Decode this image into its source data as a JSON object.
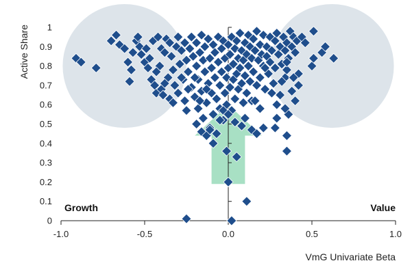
{
  "chart_data": {
    "type": "scatter",
    "title": "",
    "xlabel": "VmG Univariate Beta",
    "ylabel": "Active Share",
    "xlim": [
      -1.0,
      1.0
    ],
    "ylim": [
      0,
      1.0
    ],
    "x_ticks": [
      "-1.0",
      "-0.5",
      "0.0",
      "0.5",
      "1.0"
    ],
    "x_tick_values": [
      -1.0,
      -0.5,
      0.0,
      0.5,
      1.0
    ],
    "y_ticks": [
      "0",
      "0.1",
      "0.2",
      "0.3",
      "0.4",
      "0.5",
      "0.6",
      "0.7",
      "0.8",
      "0.9",
      "1"
    ],
    "y_tick_values": [
      0,
      0.1,
      0.2,
      0.3,
      0.4,
      0.5,
      0.6,
      0.7,
      0.8,
      0.9,
      1.0
    ],
    "grid": false,
    "annotations": {
      "left": "Growth",
      "right": "Value"
    },
    "colors": {
      "marker": "#1f4e8c",
      "marker_stroke": "#ffffff",
      "ellipse": "#dde4ea",
      "arrow": "#a8e0c4",
      "axis": "#222222"
    },
    "background_ellipses": [
      {
        "side": "growth",
        "cx": -0.62,
        "cy": 0.8,
        "rx": 0.37,
        "ry": 0.32
      },
      {
        "side": "value",
        "cx": 0.62,
        "cy": 0.8,
        "rx": 0.37,
        "ry": 0.32
      }
    ],
    "arrow": {
      "x_center": 0.0,
      "y_from": 0.19,
      "y_to": 0.6,
      "half_width": 0.1,
      "head_half_width": 0.2,
      "head_base": 0.44
    },
    "points": [
      [
        -0.91,
        0.84
      ],
      [
        -0.88,
        0.82
      ],
      [
        -0.79,
        0.79
      ],
      [
        -0.7,
        0.93
      ],
      [
        -0.67,
        0.96
      ],
      [
        -0.65,
        0.91
      ],
      [
        -0.62,
        0.89
      ],
      [
        -0.6,
        0.82
      ],
      [
        -0.59,
        0.72
      ],
      [
        -0.57,
        0.87
      ],
      [
        -0.55,
        0.93
      ],
      [
        -0.54,
        0.95
      ],
      [
        -0.53,
        0.9
      ],
      [
        -0.5,
        0.82
      ],
      [
        -0.49,
        0.89
      ],
      [
        -0.48,
        0.79
      ],
      [
        -0.47,
        0.84
      ],
      [
        -0.46,
        0.73
      ],
      [
        -0.45,
        0.93
      ],
      [
        -0.44,
        0.7
      ],
      [
        -0.43,
        0.66
      ],
      [
        -0.42,
        0.95
      ],
      [
        -0.41,
        0.8
      ],
      [
        -0.4,
        0.89
      ],
      [
        -0.4,
        0.68
      ],
      [
        -0.39,
        0.65
      ],
      [
        -0.38,
        0.87
      ],
      [
        -0.37,
        0.94
      ],
      [
        -0.36,
        0.74
      ],
      [
        -0.35,
        0.63
      ],
      [
        -0.35,
        0.92
      ],
      [
        -0.34,
        0.85
      ],
      [
        -0.33,
        0.78
      ],
      [
        -0.32,
        0.7
      ],
      [
        -0.31,
        0.9
      ],
      [
        -0.3,
        0.95
      ],
      [
        -0.3,
        0.66
      ],
      [
        -0.29,
        0.81
      ],
      [
        -0.28,
        0.88
      ],
      [
        -0.27,
        0.73
      ],
      [
        -0.26,
        0.62
      ],
      [
        -0.26,
        0.92
      ],
      [
        -0.25,
        0.57
      ],
      [
        -0.25,
        0.83
      ],
      [
        -0.24,
        0.77
      ],
      [
        -0.23,
        0.89
      ],
      [
        -0.22,
        0.69
      ],
      [
        -0.22,
        0.95
      ],
      [
        -0.21,
        0.85
      ],
      [
        -0.2,
        0.64
      ],
      [
        -0.19,
        0.8
      ],
      [
        -0.19,
        0.92
      ],
      [
        -0.18,
        0.58
      ],
      [
        -0.18,
        0.73
      ],
      [
        -0.17,
        0.87
      ],
      [
        -0.16,
        0.96
      ],
      [
        -0.16,
        0.67
      ],
      [
        -0.15,
        0.83
      ],
      [
        -0.15,
        0.53
      ],
      [
        -0.14,
        0.77
      ],
      [
        -0.14,
        0.9
      ],
      [
        -0.13,
        0.61
      ],
      [
        -0.12,
        0.94
      ],
      [
        -0.12,
        0.71
      ],
      [
        -0.11,
        0.84
      ],
      [
        -0.11,
        0.48
      ],
      [
        -0.1,
        0.66
      ],
      [
        -0.1,
        0.79
      ],
      [
        -0.09,
        0.91
      ],
      [
        -0.09,
        0.55
      ],
      [
        -0.08,
        0.74
      ],
      [
        -0.08,
        0.87
      ],
      [
        -0.07,
        0.45
      ],
      [
        -0.07,
        0.63
      ],
      [
        -0.06,
        0.82
      ],
      [
        -0.06,
        0.95
      ],
      [
        -0.05,
        0.7
      ],
      [
        -0.05,
        0.58
      ],
      [
        -0.04,
        0.89
      ],
      [
        -0.04,
        0.77
      ],
      [
        -0.03,
        0.52
      ],
      [
        -0.03,
        0.93
      ],
      [
        -0.02,
        0.66
      ],
      [
        -0.02,
        0.84
      ],
      [
        -0.01,
        0.74
      ],
      [
        -0.01,
        0.6
      ],
      [
        0.0,
        0.91
      ],
      [
        0.0,
        0.79
      ],
      [
        0.01,
        0.86
      ],
      [
        0.01,
        0.69
      ],
      [
        0.02,
        0.95
      ],
      [
        0.02,
        0.57
      ],
      [
        0.03,
        0.81
      ],
      [
        0.03,
        0.73
      ],
      [
        0.04,
        0.89
      ],
      [
        0.04,
        0.63
      ],
      [
        0.05,
        0.76
      ],
      [
        0.05,
        0.93
      ],
      [
        0.06,
        0.84
      ],
      [
        0.06,
        0.68
      ],
      [
        0.07,
        0.97
      ],
      [
        0.07,
        0.79
      ],
      [
        0.08,
        0.88
      ],
      [
        0.08,
        0.71
      ],
      [
        0.09,
        0.61
      ],
      [
        0.09,
        0.83
      ],
      [
        0.1,
        0.92
      ],
      [
        0.1,
        0.75
      ],
      [
        0.11,
        0.86
      ],
      [
        0.11,
        0.66
      ],
      [
        0.12,
        0.96
      ],
      [
        0.12,
        0.8
      ],
      [
        0.13,
        0.72
      ],
      [
        0.13,
        0.9
      ],
      [
        0.14,
        0.84
      ],
      [
        0.14,
        0.62
      ],
      [
        0.15,
        0.94
      ],
      [
        0.15,
        0.77
      ],
      [
        0.16,
        0.88
      ],
      [
        0.17,
        0.7
      ],
      [
        0.17,
        0.98
      ],
      [
        0.18,
        0.83
      ],
      [
        0.19,
        0.91
      ],
      [
        0.19,
        0.74
      ],
      [
        0.2,
        0.86
      ],
      [
        0.21,
        0.96
      ],
      [
        0.21,
        0.8
      ],
      [
        0.22,
        0.68
      ],
      [
        0.23,
        0.9
      ],
      [
        0.23,
        0.85
      ],
      [
        0.24,
        0.76
      ],
      [
        0.25,
        0.95
      ],
      [
        0.25,
        0.82
      ],
      [
        0.26,
        0.88
      ],
      [
        0.27,
        0.71
      ],
      [
        0.28,
        0.93
      ],
      [
        0.28,
        0.79
      ],
      [
        0.29,
        0.97
      ],
      [
        0.3,
        0.86
      ],
      [
        0.31,
        0.9
      ],
      [
        0.31,
        0.65
      ],
      [
        0.32,
        0.81
      ],
      [
        0.33,
        0.95
      ],
      [
        0.34,
        0.88
      ],
      [
        0.34,
        0.74
      ],
      [
        0.35,
        0.92
      ],
      [
        0.36,
        0.84
      ],
      [
        0.37,
        0.98
      ],
      [
        0.38,
        0.9
      ],
      [
        0.39,
        0.95
      ],
      [
        0.4,
        0.87
      ],
      [
        0.41,
        0.93
      ],
      [
        0.42,
        0.76
      ],
      [
        0.44,
        0.95
      ],
      [
        0.46,
        0.92
      ],
      [
        0.5,
        0.8
      ],
      [
        0.51,
        0.84
      ],
      [
        0.51,
        0.98
      ],
      [
        0.56,
        0.87
      ],
      [
        0.58,
        0.9
      ],
      [
        0.63,
        0.84
      ],
      [
        -0.58,
        0.78
      ],
      [
        -0.52,
        0.86
      ],
      [
        -0.43,
        0.77
      ],
      [
        -0.38,
        0.71
      ],
      [
        -0.33,
        0.61
      ],
      [
        -0.28,
        0.74
      ],
      [
        -0.24,
        0.68
      ],
      [
        -0.2,
        0.74
      ],
      [
        -0.17,
        0.62
      ],
      [
        -0.13,
        0.68
      ],
      [
        0.16,
        0.62
      ],
      [
        0.19,
        0.58
      ],
      [
        0.22,
        0.79
      ],
      [
        0.26,
        0.66
      ],
      [
        0.29,
        0.6
      ],
      [
        0.32,
        0.72
      ],
      [
        0.35,
        0.78
      ],
      [
        0.38,
        0.67
      ],
      [
        0.4,
        0.62
      ],
      [
        0.36,
        0.55
      ],
      [
        0.34,
        0.58
      ],
      [
        0.29,
        0.53
      ],
      [
        0.35,
        0.82
      ],
      [
        0.39,
        0.74
      ],
      [
        0.42,
        0.7
      ],
      [
        -0.19,
        0.5
      ],
      [
        -0.16,
        0.46
      ],
      [
        -0.13,
        0.44
      ],
      [
        -0.11,
        0.47
      ],
      [
        -0.09,
        0.4
      ],
      [
        -0.05,
        0.52
      ],
      [
        -0.03,
        0.57
      ],
      [
        0.0,
        0.55
      ],
      [
        0.04,
        0.51
      ],
      [
        0.08,
        0.49
      ],
      [
        0.1,
        0.53
      ],
      [
        0.14,
        0.47
      ],
      [
        0.17,
        0.45
      ],
      [
        0.28,
        0.48
      ],
      [
        0.35,
        0.44
      ],
      [
        -0.01,
        0.36
      ],
      [
        0.05,
        0.33
      ],
      [
        0.0,
        0.2
      ],
      [
        0.21,
        0.48
      ],
      [
        0.35,
        0.36
      ],
      [
        0.11,
        0.1
      ],
      [
        -0.25,
        0.01
      ],
      [
        0.02,
        0.0
      ]
    ]
  }
}
